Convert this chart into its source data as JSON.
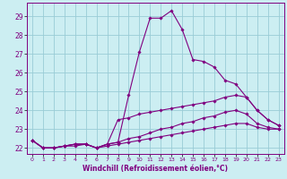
{
  "xlabel": "Windchill (Refroidissement éolien,°C)",
  "xlim": [
    -0.5,
    23.5
  ],
  "ylim": [
    21.7,
    29.7
  ],
  "yticks": [
    22,
    23,
    24,
    25,
    26,
    27,
    28,
    29
  ],
  "xticks": [
    0,
    1,
    2,
    3,
    4,
    5,
    6,
    7,
    8,
    9,
    10,
    11,
    12,
    13,
    14,
    15,
    16,
    17,
    18,
    19,
    20,
    21,
    22,
    23
  ],
  "background_color": "#cceef2",
  "grid_color": "#99ccd6",
  "line_color": "#800080",
  "axis_label_color": "#800080",
  "lines": [
    {
      "x": [
        0,
        1,
        2,
        3,
        4,
        5,
        6,
        7,
        8,
        9,
        10,
        11,
        12,
        13,
        14,
        15,
        16,
        17,
        18,
        19,
        20,
        21,
        22,
        23
      ],
      "y": [
        22.4,
        22.0,
        22.0,
        22.1,
        22.2,
        22.2,
        22.0,
        22.2,
        22.3,
        24.8,
        27.1,
        28.9,
        28.9,
        29.3,
        28.3,
        26.7,
        26.6,
        26.3,
        25.6,
        25.4,
        24.7,
        24.0,
        23.5,
        23.2
      ],
      "linestyle": "-"
    },
    {
      "x": [
        0,
        1,
        2,
        3,
        4,
        5,
        6,
        7,
        8,
        9,
        10,
        11,
        12,
        13,
        14,
        15,
        16,
        17,
        18,
        19,
        20,
        21,
        22,
        23
      ],
      "y": [
        22.4,
        22.0,
        22.0,
        22.1,
        22.2,
        22.2,
        22.0,
        22.2,
        23.5,
        23.6,
        23.8,
        23.9,
        24.0,
        24.1,
        24.2,
        24.3,
        24.4,
        24.5,
        24.7,
        24.8,
        24.7,
        24.0,
        23.5,
        23.2
      ],
      "linestyle": "-"
    },
    {
      "x": [
        0,
        1,
        2,
        3,
        4,
        5,
        6,
        7,
        8,
        9,
        10,
        11,
        12,
        13,
        14,
        15,
        16,
        17,
        18,
        19,
        20,
        21,
        22,
        23
      ],
      "y": [
        22.4,
        22.0,
        22.0,
        22.1,
        22.2,
        22.2,
        22.0,
        22.2,
        22.3,
        22.5,
        22.6,
        22.8,
        23.0,
        23.1,
        23.3,
        23.4,
        23.6,
        23.7,
        23.9,
        24.0,
        23.8,
        23.3,
        23.1,
        23.0
      ],
      "linestyle": "-"
    },
    {
      "x": [
        0,
        1,
        2,
        3,
        4,
        5,
        6,
        7,
        8,
        9,
        10,
        11,
        12,
        13,
        14,
        15,
        16,
        17,
        18,
        19,
        20,
        21,
        22,
        23
      ],
      "y": [
        22.4,
        22.0,
        22.0,
        22.1,
        22.1,
        22.2,
        22.0,
        22.1,
        22.2,
        22.3,
        22.4,
        22.5,
        22.6,
        22.7,
        22.8,
        22.9,
        23.0,
        23.1,
        23.2,
        23.3,
        23.3,
        23.1,
        23.0,
        23.0
      ],
      "linestyle": "-"
    }
  ]
}
